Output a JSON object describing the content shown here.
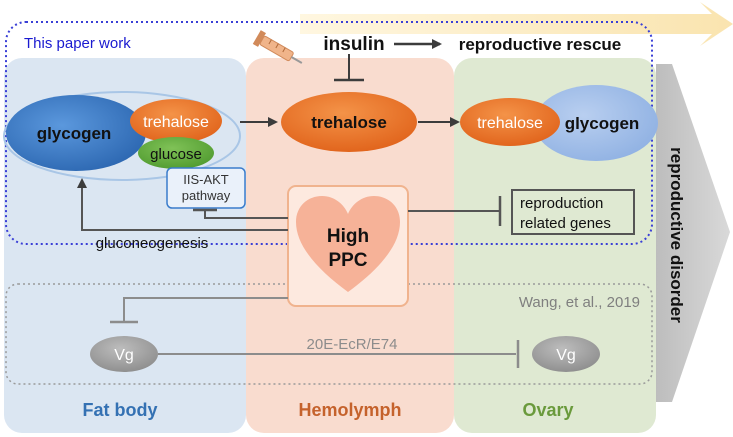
{
  "box_title": "This paper work",
  "insulin": "insulin",
  "reproductive_rescue": "reproductive rescue",
  "fat_body": {
    "glycogen": "glycogen",
    "trehalose": "trehalose",
    "glucose": "glucose",
    "iis_akt_line1": "IIS-AKT",
    "iis_akt_line2": "pathway",
    "gluconeogenesis": "gluconeogenesis",
    "vg": "Vg",
    "label": "Fat body"
  },
  "hemolymph": {
    "trehalose": "trehalose",
    "high_line1": "High",
    "high_line2": "PPC",
    "label": "Hemolymph"
  },
  "ovary": {
    "trehalose": "trehalose",
    "glycogen": "glycogen",
    "vg": "Vg",
    "label": "Ovary"
  },
  "genes_line1": "reproduction",
  "genes_line2": "related genes",
  "citation": "Wang, et al., 2019",
  "pathway_label": "20E-EcR/E74",
  "side_label": "reproductive disorder",
  "colors": {
    "fat_body_bg": "#dbe6f2",
    "hemolymph_bg": "#f9dccf",
    "ovary_bg": "#dfe9d2",
    "fat_body_text": "#3471b3",
    "hemolymph_text": "#c5622c",
    "ovary_text": "#6a9a3c",
    "trehalose_orange": "#ea6b22",
    "glucose_green": "#5da637",
    "glycogen_blue": "#3a7ccb",
    "dotted_blue": "#3a3fd6"
  }
}
